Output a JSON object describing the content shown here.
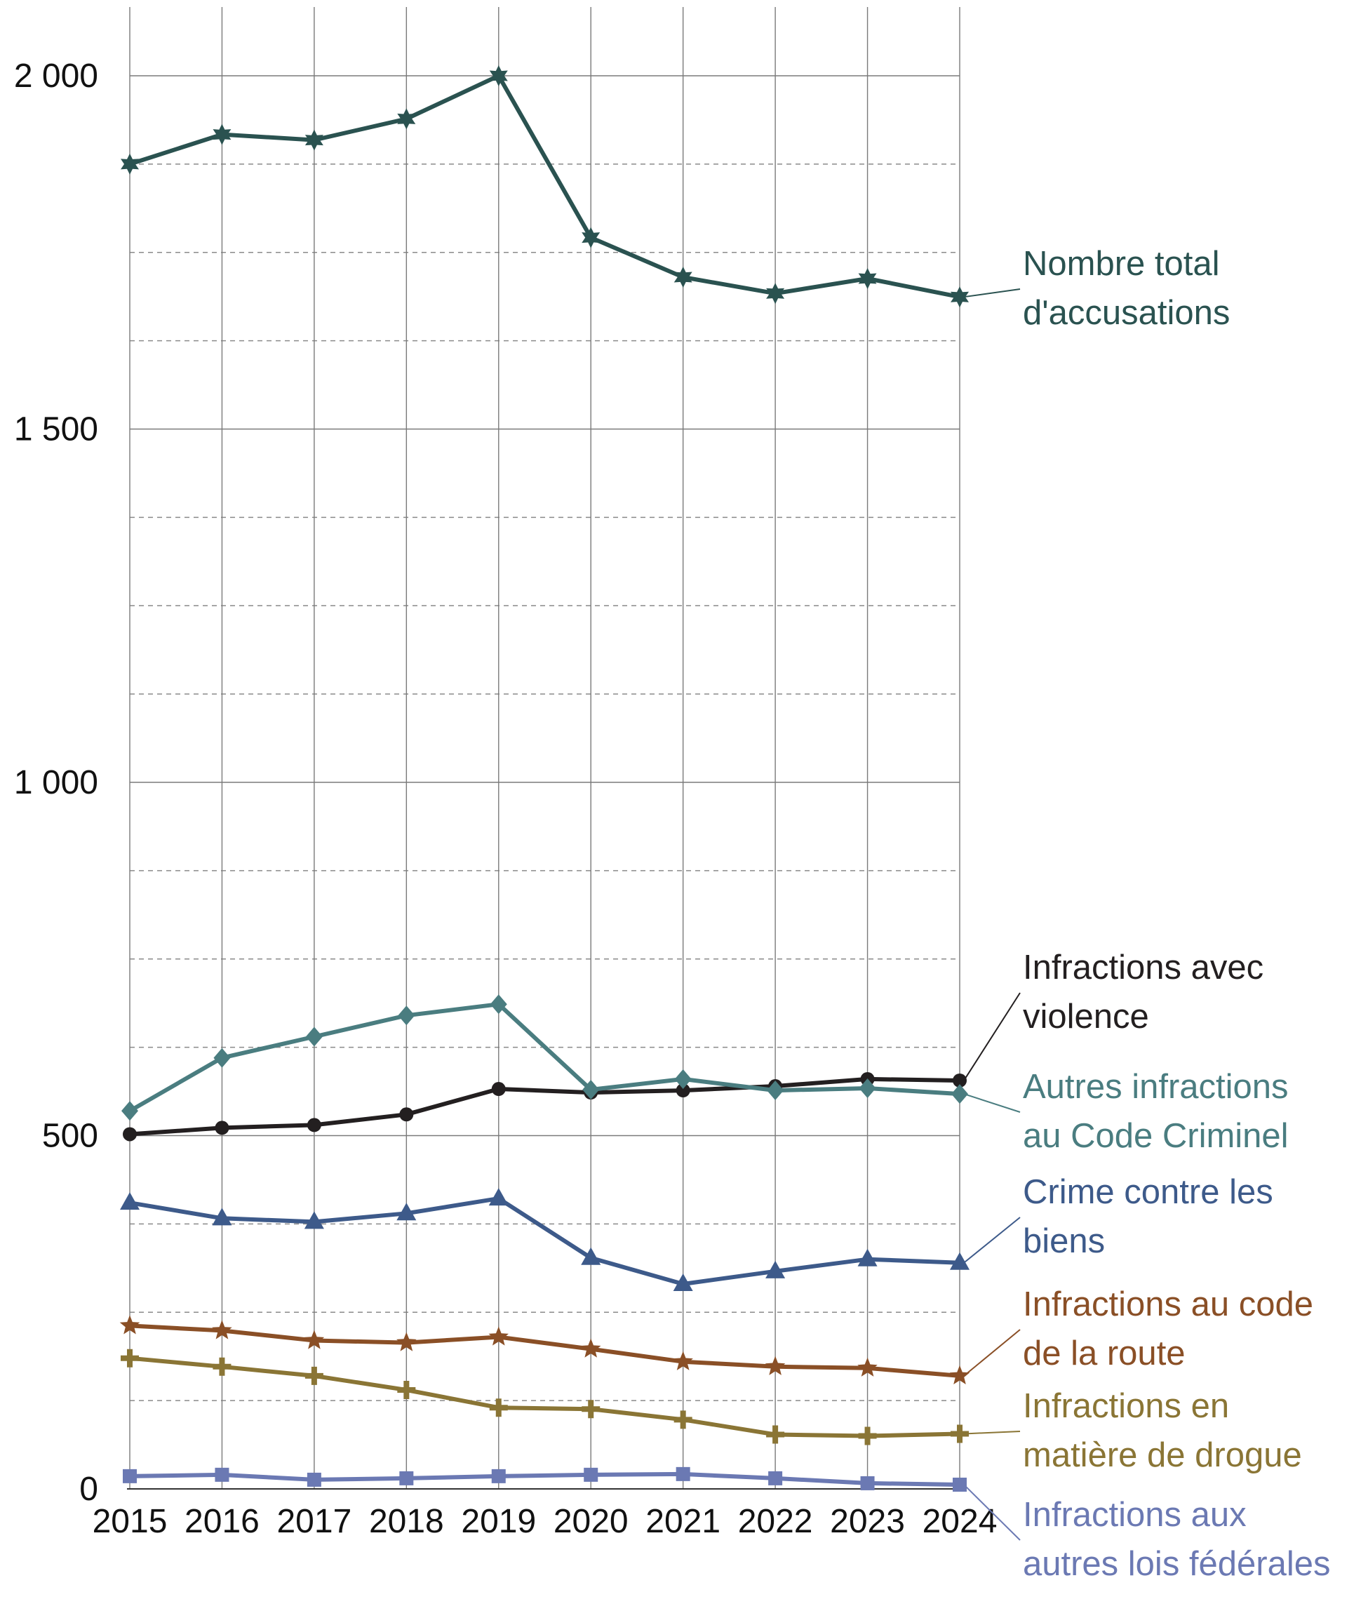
{
  "chart_data": {
    "type": "line",
    "title": "",
    "xlabel": "",
    "ylabel": "",
    "x": [
      "2015",
      "2016",
      "2017",
      "2018",
      "2019",
      "2020",
      "2021",
      "2022",
      "2023",
      "2024"
    ],
    "ylim": [
      0,
      2100
    ],
    "yticks": [
      0,
      500,
      1000,
      1500,
      2000
    ],
    "ytick_labels": [
      "0",
      "500",
      "1 000",
      "1 500",
      "2 000"
    ],
    "minor_gridlines": "dashed every 125",
    "grid": true,
    "legend": "direct labels at right end of each line",
    "series": [
      {
        "name": "Nombre total d'accusations",
        "label_lines": [
          "Nombre total",
          "d'accusations"
        ],
        "color": "#2a5250",
        "marker": "star6",
        "values": [
          1875,
          1917,
          1909,
          1939,
          2000,
          1771,
          1715,
          1692,
          1713,
          1687
        ]
      },
      {
        "name": "Infractions avec violence",
        "label_lines": [
          "Infractions avec",
          "violence"
        ],
        "color": "#231f20",
        "marker": "circle",
        "values": [
          502,
          511,
          515,
          530,
          566,
          561,
          564,
          570,
          580,
          578
        ]
      },
      {
        "name": "Autres infractions au Code Criminel",
        "label_lines": [
          "Autres infractions",
          "au Code Criminel"
        ],
        "color": "#4a7d80",
        "marker": "diamond",
        "values": [
          535,
          610,
          640,
          670,
          686,
          565,
          580,
          564,
          567,
          559
        ]
      },
      {
        "name": "Crime contre les biens",
        "label_lines": [
          "Crime contre les",
          "biens"
        ],
        "color": "#3d5a8a",
        "marker": "triangle",
        "values": [
          405,
          383,
          378,
          390,
          411,
          327,
          290,
          308,
          325,
          320
        ]
      },
      {
        "name": "Infractions au code de la route",
        "label_lines": [
          "Infractions au code",
          "de la route"
        ],
        "color": "#8a4f26",
        "marker": "star5",
        "values": [
          231,
          224,
          210,
          207,
          215,
          198,
          180,
          173,
          171,
          160
        ]
      },
      {
        "name": "Infractions en matière de drogue",
        "label_lines": [
          "Infractions en",
          "matière de drogue"
        ],
        "color": "#8a7535",
        "marker": "plus",
        "values": [
          185,
          173,
          160,
          140,
          115,
          113,
          98,
          77,
          75,
          78
        ]
      },
      {
        "name": "Infractions aux autres lois fédérales",
        "label_lines": [
          "Infractions aux",
          "autres lois fédérales"
        ],
        "color": "#6b79b3",
        "marker": "square",
        "values": [
          18,
          20,
          13,
          15,
          18,
          20,
          21,
          15,
          8,
          6
        ]
      }
    ]
  }
}
